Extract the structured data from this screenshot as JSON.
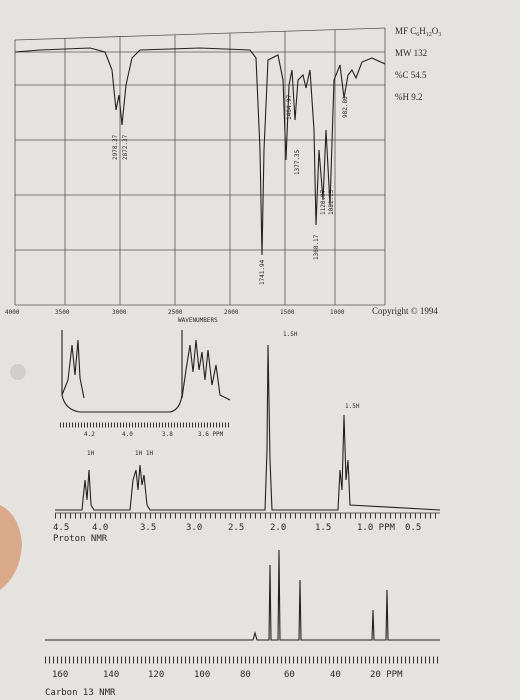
{
  "info": {
    "formula": [
      "MF",
      "C",
      "6",
      "H",
      "12",
      "O",
      "3"
    ],
    "mw": "MW 132",
    "pc": "%C 54.5",
    "ph": "%H 9.2",
    "copyright": "Copyright © 1994"
  },
  "ir": {
    "peaks": [
      "2978.37",
      "2872.37",
      "1741.94",
      "1464.97",
      "1377.35",
      "1308.17",
      "1120.97",
      "1081.13",
      "982.86"
    ],
    "axis": [
      "4000",
      "3500",
      "3000",
      "2500",
      "2000",
      "1500",
      "1000"
    ],
    "axis_title": "WAVENUMBERS"
  },
  "proton": {
    "integrals": [
      "1H",
      "1H 1H",
      "1.5H",
      "1.5H"
    ],
    "inset_axis": [
      "4.2",
      "4.0",
      "3.8",
      "3.6 PPM"
    ],
    "axis": [
      "4.5",
      "4.0",
      "3.5",
      "3.0",
      "2.5",
      "2.0",
      "1.5",
      "1.0 PPM",
      "0.5"
    ],
    "title": "Proton NMR"
  },
  "carbon": {
    "axis": [
      "160",
      "140",
      "120",
      "100",
      "80",
      "60",
      "40",
      "20 PPM"
    ],
    "title": "Carbon 13 NMR"
  }
}
